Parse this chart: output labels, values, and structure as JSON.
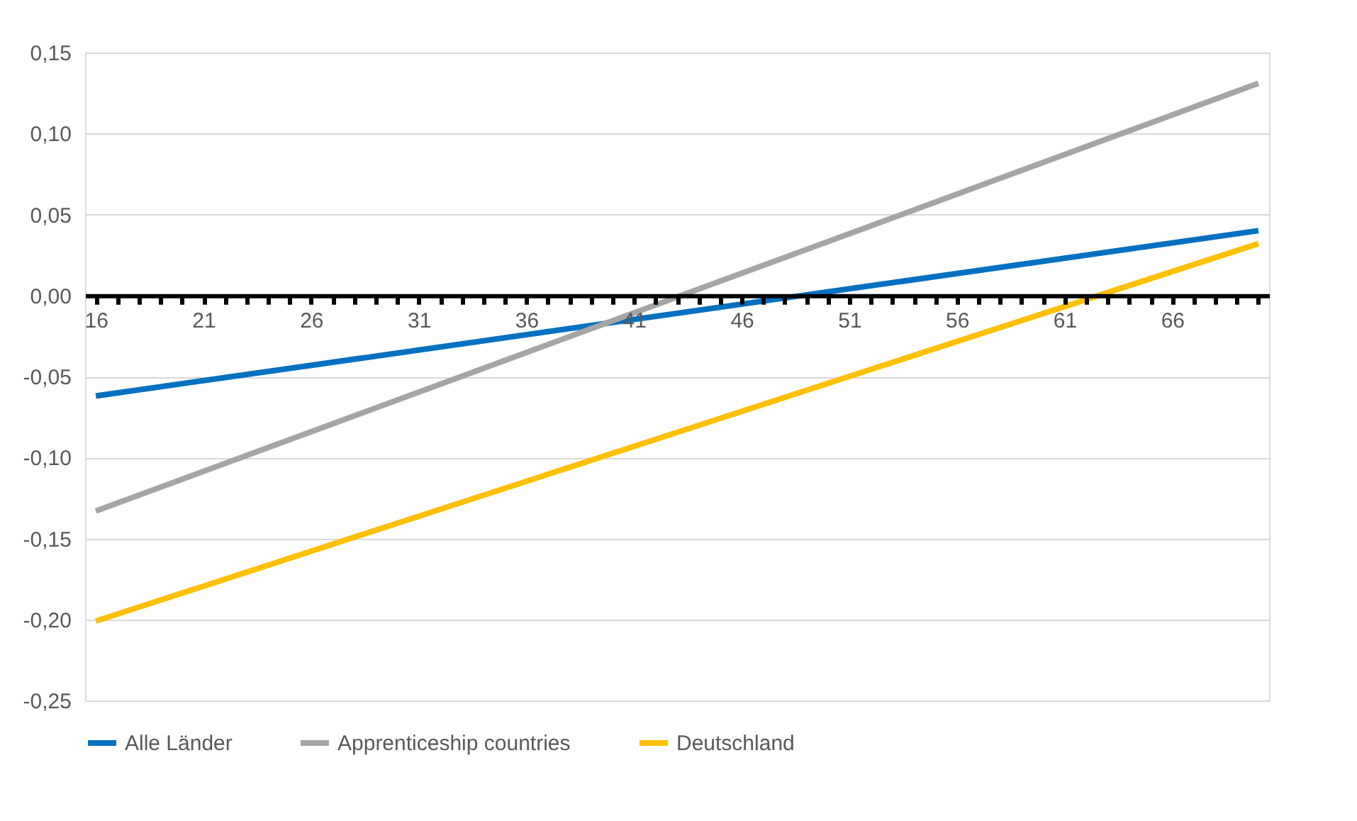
{
  "chart_data": {
    "type": "line",
    "x": [
      16,
      70
    ],
    "series": [
      {
        "name": "Alle Länder",
        "color": "#0070c0",
        "values": [
          -0.062,
          0.04
        ]
      },
      {
        "name": "Apprenticeship countries",
        "color": "#a5a5a5",
        "values": [
          -0.133,
          0.131
        ]
      },
      {
        "name": "Deutschland",
        "color": "#ffc000",
        "values": [
          -0.201,
          0.032
        ]
      }
    ],
    "xlim": [
      15.5,
      70.5
    ],
    "xticks": [
      {
        "value": 16,
        "label": "16"
      },
      {
        "value": 17,
        "label": null
      },
      {
        "value": 18,
        "label": null
      },
      {
        "value": 19,
        "label": null
      },
      {
        "value": 20,
        "label": null
      },
      {
        "value": 21,
        "label": "21"
      },
      {
        "value": 22,
        "label": null
      },
      {
        "value": 23,
        "label": null
      },
      {
        "value": 24,
        "label": null
      },
      {
        "value": 25,
        "label": null
      },
      {
        "value": 26,
        "label": "26"
      },
      {
        "value": 27,
        "label": null
      },
      {
        "value": 28,
        "label": null
      },
      {
        "value": 29,
        "label": null
      },
      {
        "value": 30,
        "label": null
      },
      {
        "value": 31,
        "label": "31"
      },
      {
        "value": 32,
        "label": null
      },
      {
        "value": 33,
        "label": null
      },
      {
        "value": 34,
        "label": null
      },
      {
        "value": 35,
        "label": null
      },
      {
        "value": 36,
        "label": "36"
      },
      {
        "value": 37,
        "label": null
      },
      {
        "value": 38,
        "label": null
      },
      {
        "value": 39,
        "label": null
      },
      {
        "value": 40,
        "label": null
      },
      {
        "value": 41,
        "label": "41"
      },
      {
        "value": 42,
        "label": null
      },
      {
        "value": 43,
        "label": null
      },
      {
        "value": 44,
        "label": null
      },
      {
        "value": 45,
        "label": null
      },
      {
        "value": 46,
        "label": "46"
      },
      {
        "value": 47,
        "label": null
      },
      {
        "value": 48,
        "label": null
      },
      {
        "value": 49,
        "label": null
      },
      {
        "value": 50,
        "label": null
      },
      {
        "value": 51,
        "label": "51"
      },
      {
        "value": 52,
        "label": null
      },
      {
        "value": 53,
        "label": null
      },
      {
        "value": 54,
        "label": null
      },
      {
        "value": 55,
        "label": null
      },
      {
        "value": 56,
        "label": "56"
      },
      {
        "value": 57,
        "label": null
      },
      {
        "value": 58,
        "label": null
      },
      {
        "value": 59,
        "label": null
      },
      {
        "value": 60,
        "label": null
      },
      {
        "value": 61,
        "label": "61"
      },
      {
        "value": 62,
        "label": null
      },
      {
        "value": 63,
        "label": null
      },
      {
        "value": 64,
        "label": null
      },
      {
        "value": 65,
        "label": null
      },
      {
        "value": 66,
        "label": "66"
      },
      {
        "value": 67,
        "label": null
      },
      {
        "value": 68,
        "label": null
      },
      {
        "value": 69,
        "label": null
      },
      {
        "value": 70,
        "label": null
      }
    ],
    "ylim": [
      -0.25,
      0.15
    ],
    "yticks": [
      {
        "value": -0.25,
        "label": "-0,25"
      },
      {
        "value": -0.2,
        "label": "-0,20"
      },
      {
        "value": -0.15,
        "label": "-0,15"
      },
      {
        "value": -0.1,
        "label": "-0,10"
      },
      {
        "value": -0.05,
        "label": "-0,05"
      },
      {
        "value": 0,
        "label": "0,00"
      },
      {
        "value": 0.05,
        "label": "0,05"
      },
      {
        "value": 0.1,
        "label": "0,10"
      },
      {
        "value": 0.15,
        "label": "0,15"
      }
    ],
    "grid": "y",
    "legend": "bottom",
    "marker": "none",
    "line_style": "solid"
  }
}
